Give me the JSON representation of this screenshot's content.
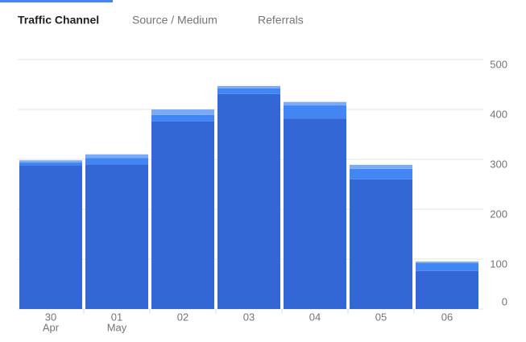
{
  "tabs": [
    {
      "label": "Traffic Channel",
      "active": true
    },
    {
      "label": "Source / Medium",
      "active": false
    },
    {
      "label": "Referrals",
      "active": false
    }
  ],
  "chart_data": {
    "type": "stacked-bar",
    "categories": [
      "30",
      "01",
      "02",
      "03",
      "04",
      "05",
      "06"
    ],
    "category_sublabels": [
      "Apr",
      "May",
      null,
      null,
      null,
      null,
      null
    ],
    "series": [
      {
        "color": "#3367d6",
        "values": [
          288,
          290,
          376,
          431,
          382,
          260,
          76
        ]
      },
      {
        "color": "#4285f4",
        "values": [
          6,
          13,
          13,
          11,
          26,
          21,
          16
        ]
      },
      {
        "color": "#7baaf7",
        "values": [
          4,
          7,
          11,
          5,
          7,
          8,
          3
        ]
      }
    ],
    "ylim": [
      0,
      500
    ],
    "yticks": [
      0,
      100,
      200,
      300,
      400,
      500
    ],
    "grid": true
  }
}
